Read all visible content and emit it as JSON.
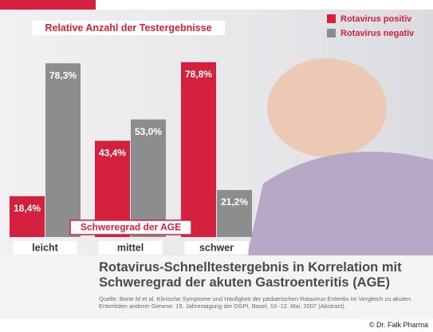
{
  "chart_data": {
    "type": "bar",
    "title": "Rotavirus-Schnelltestergebnis in Korrelation mit Schweregrad der akuten Gastroenteritis (AGE)",
    "subtitle": "Relative Anzahl der Testergebnisse",
    "x_label": "Schweregrad der AGE",
    "categories": [
      "leicht",
      "mittel",
      "schwer"
    ],
    "series": [
      {
        "name": "Rotavirus positiv",
        "color": "#d4203c",
        "values": [
          18.4,
          43.4,
          78.8
        ],
        "value_labels": [
          "18,4%",
          "43,4%",
          "78,8%"
        ]
      },
      {
        "name": "Rotavirus negativ",
        "color": "#8c8d8f",
        "values": [
          78.3,
          53.0,
          21.2
        ],
        "value_labels": [
          "78,3%",
          "53,0%",
          "21,2%"
        ]
      }
    ],
    "legend": "top-right",
    "source": "Quelle: Borte M et al. Klinische Symptome und Häufigkeit der pädiatrischen Rotavirus-Enteritis im Vergleich zu akuten Enteritiden anderer Genese. 15. Jahrestagung der DGPI, Basel, 10.-12. Mai, 2007 (Abstract).",
    "credit": "© Dr. Falk Pharma"
  }
}
